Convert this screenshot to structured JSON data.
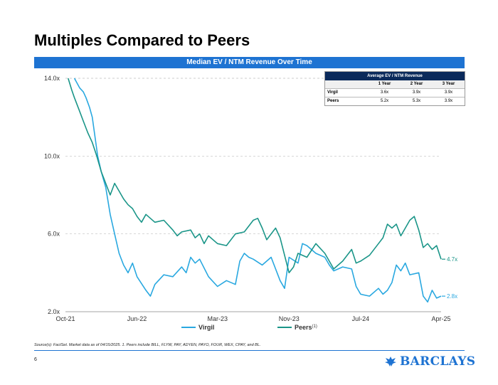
{
  "page": {
    "title": "Multiples Compared to Peers",
    "banner": "Median EV / NTM Revenue Over Time",
    "source_note": "Source(s): FactSet. Market data as of 04/15/2025. 1. Peers include BILL, FLYW, PAY, ADYEN, PAYO, FOUR, WEX, CPAY, and BL.",
    "page_number": "6",
    "brand": "BARCLAYS",
    "brand_color": "#1e73d2"
  },
  "avg_table": {
    "title": "Average EV / NTM Revenue",
    "columns": [
      "",
      "1 Year",
      "2 Year",
      "3 Year"
    ],
    "rows": [
      {
        "label": "Virgil",
        "values": [
          "3.6x",
          "3.9x",
          "3.9x"
        ]
      },
      {
        "label": "Peers",
        "values": [
          "5.2x",
          "5.3x",
          "3.9x"
        ]
      }
    ]
  },
  "chart_data": {
    "type": "line",
    "title": "Median EV / NTM Revenue Over Time",
    "xlabel": "",
    "ylabel": "",
    "ylim": [
      2.0,
      14.0
    ],
    "y_ticks": [
      2.0,
      6.0,
      10.0,
      14.0
    ],
    "y_tick_labels": [
      "2.0x",
      "6.0x",
      "10.0x",
      "14.0x"
    ],
    "x_range": [
      0,
      42
    ],
    "x_ticks": [
      0,
      8,
      17,
      25,
      33,
      42
    ],
    "x_tick_labels": [
      "Oct-21",
      "Jun-22",
      "Mar-23",
      "Nov-23",
      "Jul-24",
      "Apr-25"
    ],
    "x_unit": "months since Oct-21",
    "grid": true,
    "legend_position": "bottom",
    "series": [
      {
        "name": "Virgil",
        "legend_label": "Virgil",
        "color": "#29a8e0",
        "end_label": "2.8x",
        "points": [
          [
            1.0,
            14.0
          ],
          [
            1.6,
            13.5
          ],
          [
            2.0,
            13.3
          ],
          [
            2.3,
            13.0
          ],
          [
            2.7,
            12.5
          ],
          [
            3.0,
            12.0
          ],
          [
            3.3,
            11.0
          ],
          [
            3.6,
            10.0
          ],
          [
            4.0,
            9.2
          ],
          [
            4.5,
            8.4
          ],
          [
            5.0,
            7.0
          ],
          [
            5.5,
            6.0
          ],
          [
            6.0,
            5.0
          ],
          [
            6.5,
            4.4
          ],
          [
            7.0,
            4.0
          ],
          [
            7.5,
            4.5
          ],
          [
            8.0,
            3.8
          ],
          [
            9.0,
            3.1
          ],
          [
            9.5,
            2.8
          ],
          [
            10.0,
            3.4
          ],
          [
            11.0,
            3.9
          ],
          [
            12.0,
            3.8
          ],
          [
            13.0,
            4.3
          ],
          [
            13.5,
            4.0
          ],
          [
            14.0,
            4.8
          ],
          [
            14.5,
            4.5
          ],
          [
            15.0,
            4.7
          ],
          [
            16.0,
            3.8
          ],
          [
            17.0,
            3.3
          ],
          [
            18.0,
            3.6
          ],
          [
            19.0,
            3.4
          ],
          [
            19.5,
            4.6
          ],
          [
            20.0,
            5.0
          ],
          [
            20.5,
            4.8
          ],
          [
            21.0,
            4.7
          ],
          [
            22.0,
            4.4
          ],
          [
            23.0,
            4.8
          ],
          [
            24.0,
            3.6
          ],
          [
            24.5,
            3.2
          ],
          [
            25.0,
            4.8
          ],
          [
            26.0,
            4.5
          ],
          [
            26.5,
            5.5
          ],
          [
            27.0,
            5.4
          ],
          [
            28.0,
            5.0
          ],
          [
            29.0,
            4.8
          ],
          [
            29.5,
            4.4
          ],
          [
            30.0,
            4.1
          ],
          [
            31.0,
            4.3
          ],
          [
            32.0,
            4.2
          ],
          [
            32.5,
            3.3
          ],
          [
            33.0,
            2.9
          ],
          [
            34.0,
            2.8
          ],
          [
            35.0,
            3.2
          ],
          [
            35.5,
            2.9
          ],
          [
            36.0,
            3.1
          ],
          [
            36.5,
            3.5
          ],
          [
            37.0,
            4.4
          ],
          [
            37.5,
            4.1
          ],
          [
            38.0,
            4.5
          ],
          [
            38.5,
            3.9
          ],
          [
            39.5,
            4.0
          ],
          [
            40.0,
            2.8
          ],
          [
            40.5,
            2.5
          ],
          [
            41.0,
            3.1
          ],
          [
            41.5,
            2.7
          ],
          [
            42.0,
            2.8
          ]
        ]
      },
      {
        "name": "Peers",
        "legend_label": "Peers",
        "legend_superscript": "(1)",
        "color": "#1a9588",
        "end_label": "4.7x",
        "points": [
          [
            0.3,
            14.0
          ],
          [
            0.7,
            13.4
          ],
          [
            1.0,
            13.0
          ],
          [
            1.5,
            12.4
          ],
          [
            2.0,
            11.8
          ],
          [
            2.5,
            11.2
          ],
          [
            3.0,
            10.7
          ],
          [
            3.5,
            10.0
          ],
          [
            4.0,
            9.2
          ],
          [
            4.5,
            8.6
          ],
          [
            5.0,
            8.0
          ],
          [
            5.5,
            8.6
          ],
          [
            6.0,
            8.2
          ],
          [
            6.5,
            7.8
          ],
          [
            7.0,
            7.5
          ],
          [
            7.5,
            7.3
          ],
          [
            8.0,
            6.9
          ],
          [
            8.5,
            6.6
          ],
          [
            9.0,
            7.0
          ],
          [
            10.0,
            6.6
          ],
          [
            11.0,
            6.7
          ],
          [
            12.0,
            6.2
          ],
          [
            12.5,
            5.9
          ],
          [
            13.0,
            6.1
          ],
          [
            14.0,
            6.2
          ],
          [
            14.5,
            5.8
          ],
          [
            15.0,
            6.0
          ],
          [
            15.5,
            5.5
          ],
          [
            16.0,
            5.9
          ],
          [
            17.0,
            5.5
          ],
          [
            18.0,
            5.4
          ],
          [
            19.0,
            6.0
          ],
          [
            20.0,
            6.1
          ],
          [
            21.0,
            6.7
          ],
          [
            21.5,
            6.8
          ],
          [
            22.0,
            6.3
          ],
          [
            22.5,
            5.7
          ],
          [
            23.0,
            6.0
          ],
          [
            23.5,
            6.3
          ],
          [
            24.0,
            5.8
          ],
          [
            25.0,
            4.0
          ],
          [
            25.5,
            4.3
          ],
          [
            26.0,
            5.0
          ],
          [
            27.0,
            4.8
          ],
          [
            28.0,
            5.5
          ],
          [
            29.0,
            5.0
          ],
          [
            30.0,
            4.2
          ],
          [
            31.0,
            4.6
          ],
          [
            32.0,
            5.2
          ],
          [
            32.5,
            4.5
          ],
          [
            33.0,
            4.6
          ],
          [
            34.0,
            4.9
          ],
          [
            35.0,
            5.5
          ],
          [
            35.5,
            5.8
          ],
          [
            36.0,
            6.5
          ],
          [
            36.5,
            6.3
          ],
          [
            37.0,
            6.5
          ],
          [
            37.5,
            5.9
          ],
          [
            38.0,
            6.3
          ],
          [
            38.5,
            6.7
          ],
          [
            39.0,
            6.9
          ],
          [
            39.5,
            6.2
          ],
          [
            40.0,
            5.3
          ],
          [
            40.5,
            5.5
          ],
          [
            41.0,
            5.2
          ],
          [
            41.5,
            5.4
          ],
          [
            42.0,
            4.7
          ]
        ]
      }
    ]
  }
}
